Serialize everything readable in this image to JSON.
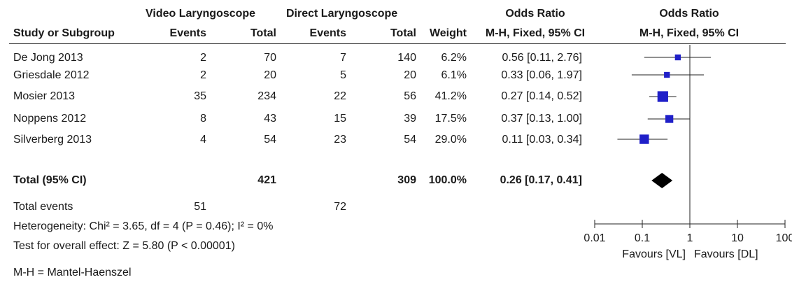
{
  "header": {
    "group_vl": "Video Laryngoscope",
    "group_dl": "Direct Laryngoscope",
    "or_title_table": "Odds Ratio",
    "or_title_plot": "Odds Ratio",
    "col_study": "Study or Subgroup",
    "col_vl_events": "Events",
    "col_vl_total": "Total",
    "col_dl_events": "Events",
    "col_dl_total": "Total",
    "col_weight": "Weight",
    "col_or_method_table": "M-H, Fixed, 95% CI",
    "col_or_method_plot": "M-H, Fixed, 95% CI"
  },
  "studies": [
    {
      "name": "De Jong 2013",
      "vl_events": "2",
      "vl_total": "70",
      "dl_events": "7",
      "dl_total": "140",
      "weight": "6.2%",
      "or_text": "0.56 [0.11, 2.76]"
    },
    {
      "name": "Griesdale 2012",
      "vl_events": "2",
      "vl_total": "20",
      "dl_events": "5",
      "dl_total": "20",
      "weight": "6.1%",
      "or_text": "0.33 [0.06, 1.97]"
    },
    {
      "name": "Mosier 2013",
      "vl_events": "35",
      "vl_total": "234",
      "dl_events": "22",
      "dl_total": "56",
      "weight": "41.2%",
      "or_text": "0.27 [0.14, 0.52]"
    },
    {
      "name": "Noppens 2012",
      "vl_events": "8",
      "vl_total": "43",
      "dl_events": "15",
      "dl_total": "39",
      "weight": "17.5%",
      "or_text": "0.37 [0.13, 1.00]"
    },
    {
      "name": "Silverberg 2013",
      "vl_events": "4",
      "vl_total": "54",
      "dl_events": "23",
      "dl_total": "54",
      "weight": "29.0%",
      "or_text": "0.11 [0.03, 0.34]"
    }
  ],
  "total_row": {
    "label": "Total (95% CI)",
    "vl_total": "421",
    "dl_total": "309",
    "weight": "100.0%",
    "or_text": "0.26 [0.17, 0.41]"
  },
  "total_events": {
    "label": "Total events",
    "vl": "51",
    "dl": "72"
  },
  "heterogeneity": "Heterogeneity: Chi² = 3.65, df = 4 (P = 0.46); I² = 0%",
  "overall_effect": "Test for overall effect: Z = 5.80 (P < 0.00001)",
  "footnote": "M-H = Mantel-Haenszel",
  "chart_data": {
    "type": "scatter",
    "scale": "log",
    "xlim": [
      0.01,
      100
    ],
    "ticks": [
      0.01,
      0.1,
      1,
      10,
      100
    ],
    "tick_labels": [
      "0.01",
      "0.1",
      "1",
      "10",
      "100"
    ],
    "xlabel_left": "Favours [VL]",
    "xlabel_right": "Favours [DL]",
    "null_line": 1,
    "marker_color": "#1f1fc8",
    "studies": [
      {
        "or": 0.56,
        "lower": 0.11,
        "upper": 2.76,
        "weight": 6.2
      },
      {
        "or": 0.33,
        "lower": 0.06,
        "upper": 1.97,
        "weight": 6.1
      },
      {
        "or": 0.27,
        "lower": 0.14,
        "upper": 0.52,
        "weight": 41.2
      },
      {
        "or": 0.37,
        "lower": 0.13,
        "upper": 1.0,
        "weight": 17.5
      },
      {
        "or": 0.11,
        "lower": 0.03,
        "upper": 0.34,
        "weight": 29.0
      }
    ],
    "pooled": {
      "or": 0.26,
      "lower": 0.17,
      "upper": 0.41
    }
  }
}
